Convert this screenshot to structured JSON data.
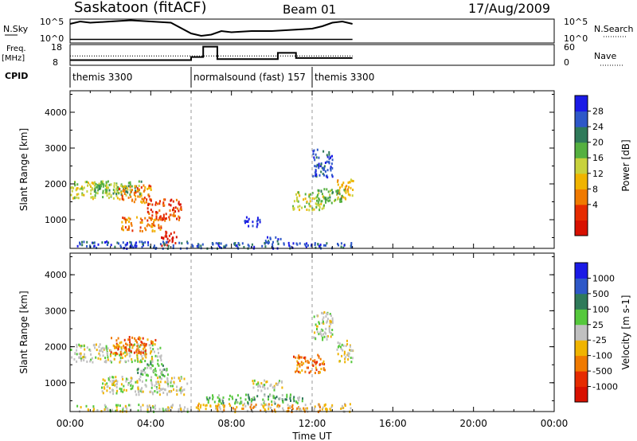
{
  "header": {
    "station": "Saskatoon (fitACF)",
    "beam": "Beam 01",
    "date": "17/Aug/2009"
  },
  "strip_labels": {
    "nsky": "N.Sky",
    "nsky_ticks": [
      "10^5",
      "10^0"
    ],
    "freq_line1": "Freq.",
    "freq_line2": "[MHz]",
    "freq_ticks": [
      "18",
      "8"
    ],
    "cpid": "CPID",
    "nsearch": "N.Search",
    "nsearch_ticks": [
      "10^5",
      "10^0"
    ],
    "nave": "Nave",
    "nave_ticks": [
      "60",
      "0"
    ]
  },
  "cpid_segments": [
    {
      "start_h": 0,
      "label": "themis 3300"
    },
    {
      "start_h": 6,
      "label": "normalsound (fast) 157"
    },
    {
      "start_h": 12,
      "label": "themis 3300"
    }
  ],
  "chart_data": [
    {
      "type": "line",
      "title": "",
      "series": [
        {
          "x": [
            0,
            0.5,
            1,
            2,
            3,
            4,
            5,
            6,
            6.5,
            7,
            7.5,
            8,
            9,
            10,
            11,
            12,
            12.5,
            13,
            13.5,
            14
          ],
          "values": [
            0.8,
            0.9,
            0.85,
            0.9,
            0.95,
            0.9,
            0.85,
            0.4,
            0.3,
            0.35,
            0.5,
            0.45,
            0.5,
            0.5,
            0.55,
            0.6,
            0.7,
            0.85,
            0.9,
            0.8
          ]
        },
        {
          "x": [
            0,
            1,
            2,
            3,
            4,
            5,
            6,
            7,
            8,
            9,
            10,
            11,
            12,
            13,
            14
          ],
          "values": [
            0.15,
            0.15,
            0.15,
            0.15,
            0.15,
            0.15,
            0.15,
            0.15,
            0.15,
            0.15,
            0.15,
            0.15,
            0.15,
            0.15,
            0.15
          ]
        }
      ],
      "xlim": [
        0,
        24
      ]
    },
    {
      "type": "line",
      "series": [
        {
          "x": [
            0,
            6,
            6,
            6.6,
            6.6,
            7.3,
            7.3,
            10.3,
            10.3,
            11.2,
            11.2,
            14
          ],
          "values": [
            10.5,
            10.5,
            12,
            12,
            17,
            17,
            11,
            11,
            14,
            14,
            11.5,
            11.5
          ]
        },
        {
          "x": [
            0,
            14
          ],
          "values": [
            12.5,
            12.5
          ]
        }
      ],
      "xlim": [
        0,
        24
      ],
      "ylim": [
        8,
        18
      ]
    },
    {
      "type": "heatmap",
      "ylabel": "Slant Range [km]",
      "colorbar_label": "Power [dB]",
      "colorbar_ticks": [
        "28",
        "24",
        "20",
        "16",
        "12",
        "8",
        "4"
      ],
      "colorbar_colors": [
        "#1a1ae6",
        "#2e58c8",
        "#2f7a5a",
        "#55b040",
        "#c8d23c",
        "#f0b400",
        "#f07a00",
        "#e62b00",
        "#d81000"
      ],
      "ylim": [
        200,
        4600
      ],
      "yticks": [
        "1000",
        "2000",
        "3000",
        "4000"
      ],
      "xlim": [
        0,
        24
      ],
      "blobs": [
        {
          "x0": 0.0,
          "x1": 2.4,
          "y0": 1600,
          "y1": 2100,
          "c": 4
        },
        {
          "x0": 1.2,
          "x1": 3.5,
          "y0": 1700,
          "y1": 2100,
          "c": 3
        },
        {
          "x0": 2.4,
          "x1": 4.0,
          "y0": 1500,
          "y1": 2000,
          "c": 6
        },
        {
          "x0": 3.8,
          "x1": 5.5,
          "y0": 1000,
          "y1": 1600,
          "c": 7
        },
        {
          "x0": 2.5,
          "x1": 4.5,
          "y0": 700,
          "y1": 1100,
          "c": 6
        },
        {
          "x0": 4.5,
          "x1": 5.3,
          "y0": 300,
          "y1": 700,
          "c": 8
        },
        {
          "x0": 0.3,
          "x1": 5.8,
          "y0": 220,
          "y1": 420,
          "c": 1
        },
        {
          "x0": 6.0,
          "x1": 14.0,
          "y0": 220,
          "y1": 380,
          "c": 1
        },
        {
          "x0": 11.0,
          "x1": 12.6,
          "y0": 1300,
          "y1": 1800,
          "c": 4
        },
        {
          "x0": 13.2,
          "x1": 14.0,
          "y0": 1600,
          "y1": 2200,
          "c": 5
        },
        {
          "x0": 12.0,
          "x1": 13.0,
          "y0": 2200,
          "y1": 3000,
          "c": 1
        },
        {
          "x0": 8.6,
          "x1": 9.4,
          "y0": 800,
          "y1": 1100,
          "c": 0
        },
        {
          "x0": 9.6,
          "x1": 10.6,
          "y0": 350,
          "y1": 550,
          "c": 1
        },
        {
          "x0": 12.2,
          "x1": 13.6,
          "y0": 1500,
          "y1": 1900,
          "c": 3
        }
      ]
    },
    {
      "type": "heatmap",
      "ylabel": "Slant Range [km]",
      "colorbar_label": "Velocity [m s-1]",
      "colorbar_ticks": [
        "1000",
        "500",
        "100",
        "25",
        "-25",
        "-100",
        "-500",
        "-1000"
      ],
      "colorbar_colors": [
        "#1a1ae6",
        "#2e58c8",
        "#2f7a5a",
        "#55c83c",
        "#c0c0c0",
        "#f0b400",
        "#f07a00",
        "#e62b00",
        "#d81000"
      ],
      "ylim": [
        200,
        4600
      ],
      "yticks": [
        "1000",
        "2000",
        "3000",
        "4000"
      ],
      "xlim": [
        0,
        24
      ],
      "blobs": [
        {
          "x0": 0.0,
          "x1": 4.5,
          "y0": 1600,
          "y1": 2100,
          "c": 4
        },
        {
          "x0": 2.0,
          "x1": 4.2,
          "y0": 1800,
          "y1": 2300,
          "c": 6
        },
        {
          "x0": 3.3,
          "x1": 4.9,
          "y0": 1200,
          "y1": 1600,
          "c": 3
        },
        {
          "x0": 1.5,
          "x1": 5.8,
          "y0": 700,
          "y1": 1200,
          "c": 4
        },
        {
          "x0": 0.3,
          "x1": 5.8,
          "y0": 220,
          "y1": 420,
          "c": 4
        },
        {
          "x0": 6.0,
          "x1": 14.0,
          "y0": 220,
          "y1": 450,
          "c": 5
        },
        {
          "x0": 6.5,
          "x1": 11.5,
          "y0": 450,
          "y1": 700,
          "c": 3
        },
        {
          "x0": 11.0,
          "x1": 12.6,
          "y0": 1300,
          "y1": 1800,
          "c": 6
        },
        {
          "x0": 13.2,
          "x1": 14.0,
          "y0": 1600,
          "y1": 2200,
          "c": 4
        },
        {
          "x0": 9.0,
          "x1": 10.5,
          "y0": 800,
          "y1": 1100,
          "c": 4
        },
        {
          "x0": 12.0,
          "x1": 13.0,
          "y0": 2200,
          "y1": 3000,
          "c": 4
        }
      ]
    }
  ],
  "xaxis": {
    "label": "Time UT",
    "ticks": [
      "00:00",
      "04:00",
      "08:00",
      "12:00",
      "16:00",
      "20:00",
      "00:00"
    ]
  }
}
